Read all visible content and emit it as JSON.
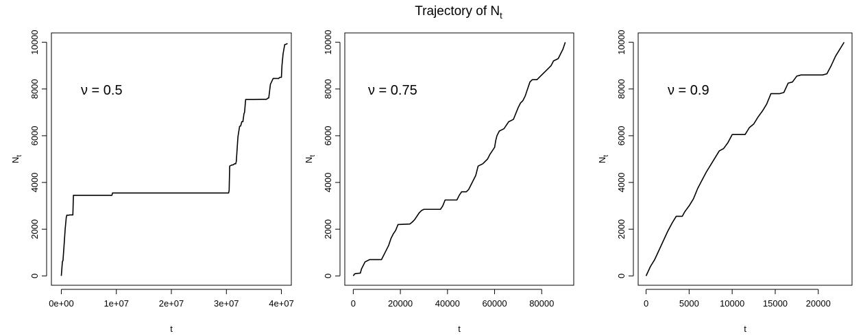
{
  "title": {
    "main": "Trajectory of N",
    "sub": "t"
  },
  "chart_data": [
    {
      "type": "line",
      "title": "",
      "xlabel": "t",
      "ylabel": {
        "main": "N",
        "sub": "t"
      },
      "annotation": "ν = 0.5",
      "xlim": [
        -1800000,
        41800000
      ],
      "ylim": [
        -400,
        10400
      ],
      "xticks": [
        0,
        10000000,
        20000000,
        30000000,
        40000000
      ],
      "xtick_labels": [
        "0e+00",
        "1e+07",
        "2e+07",
        "3e+07",
        "4e+07"
      ],
      "yticks": [
        0,
        2000,
        4000,
        6000,
        8000,
        10000
      ],
      "ytick_labels": [
        "0",
        "2000",
        "4000",
        "6000",
        "8000",
        "10000"
      ],
      "grid": false,
      "series": [
        {
          "x": [
            0,
            200000,
            300000,
            500000,
            700000,
            900000,
            1000000,
            1400000,
            1500000,
            2100000,
            2200000,
            9200000,
            9300000,
            30400000,
            30500000,
            30600000,
            31000000,
            31200000,
            31500000,
            31700000,
            31800000,
            32100000,
            32400000,
            32600000,
            32800000,
            33000000,
            33200000,
            33300000,
            33500000,
            35100000,
            36500000,
            37300000,
            37500000,
            37700000,
            38000000,
            38500000,
            38800000,
            39000000,
            39500000,
            39700000,
            40000000,
            40100000,
            40300000,
            40600000,
            40900000,
            41100000
          ],
          "y": [
            0,
            620,
            650,
            1300,
            2000,
            2500,
            2600,
            2600,
            2610,
            2610,
            3450,
            3450,
            3550,
            3550,
            3650,
            4700,
            4750,
            4750,
            4800,
            4800,
            4900,
            5950,
            6400,
            6420,
            6600,
            6600,
            6950,
            7000,
            7550,
            7550,
            7560,
            7560,
            7600,
            7620,
            8200,
            8450,
            8450,
            8450,
            8450,
            8500,
            8500,
            9000,
            9500,
            9900,
            9920,
            9950
          ]
        }
      ]
    },
    {
      "type": "line",
      "title": "",
      "xlabel": "t",
      "ylabel": {
        "main": "N",
        "sub": "t"
      },
      "annotation": "ν = 0.75",
      "xlim": [
        -3600,
        93600
      ],
      "ylim": [
        -400,
        10400
      ],
      "xticks": [
        0,
        20000,
        40000,
        60000,
        80000
      ],
      "xtick_labels": [
        "0",
        "20000",
        "40000",
        "60000",
        "80000"
      ],
      "yticks": [
        0,
        2000,
        4000,
        6000,
        8000,
        10000
      ],
      "ytick_labels": [
        "0",
        "2000",
        "4000",
        "6000",
        "8000",
        "10000"
      ],
      "grid": false,
      "series": [
        {
          "x": [
            0,
            500,
            1000,
            3000,
            3500,
            5000,
            6000,
            7000,
            12000,
            13000,
            15000,
            16000,
            17000,
            18000,
            19000,
            24000,
            25000,
            26000,
            28000,
            29000,
            30000,
            37000,
            38000,
            39000,
            44000,
            45000,
            46000,
            48000,
            49000,
            50000,
            51000,
            52000,
            53000,
            55000,
            57000,
            57500,
            58000,
            60000,
            60500,
            61000,
            62000,
            63000,
            64000,
            66000,
            67000,
            68000,
            70000,
            71000,
            72000,
            73000,
            74000,
            75000,
            76000,
            77000,
            78000,
            79000,
            81000,
            82000,
            84000,
            85000,
            87000,
            88000,
            89000,
            90000
          ],
          "y": [
            0,
            80,
            100,
            120,
            300,
            600,
            650,
            700,
            700,
            900,
            1300,
            1600,
            1800,
            1950,
            2200,
            2220,
            2300,
            2400,
            2700,
            2800,
            2850,
            2850,
            3000,
            3250,
            3250,
            3450,
            3600,
            3600,
            3700,
            3900,
            4100,
            4300,
            4700,
            4800,
            5000,
            5100,
            5200,
            5500,
            5800,
            6000,
            6200,
            6250,
            6300,
            6600,
            6650,
            6700,
            7200,
            7400,
            7500,
            7700,
            8000,
            8300,
            8400,
            8400,
            8400,
            8500,
            8700,
            8800,
            9000,
            9200,
            9300,
            9500,
            9700,
            10000
          ]
        }
      ]
    },
    {
      "type": "line",
      "title": "",
      "xlabel": "t",
      "ylabel": {
        "main": "N",
        "sub": "t"
      },
      "annotation": "ν = 0.9",
      "xlim": [
        -920,
        23920
      ],
      "ylim": [
        -400,
        10400
      ],
      "xticks": [
        0,
        5000,
        10000,
        15000,
        20000
      ],
      "xtick_labels": [
        "0",
        "5000",
        "10000",
        "15000",
        "20000"
      ],
      "yticks": [
        0,
        2000,
        4000,
        6000,
        8000,
        10000
      ],
      "ytick_labels": [
        "0",
        "2000",
        "4000",
        "6000",
        "8000",
        "10000"
      ],
      "grid": false,
      "series": [
        {
          "x": [
            0,
            500,
            1000,
            1500,
            2000,
            2500,
            3000,
            3500,
            4200,
            4500,
            5000,
            5500,
            6000,
            6500,
            7000,
            7500,
            8000,
            8500,
            9000,
            9500,
            10000,
            10500,
            10600,
            11500,
            12000,
            12500,
            13000,
            13500,
            14000,
            14500,
            15500,
            16000,
            16500,
            17000,
            17500,
            18000,
            18500,
            19000,
            20000,
            20500,
            21000,
            21500,
            22000,
            22500,
            23000
          ],
          "y": [
            0,
            400,
            700,
            1100,
            1500,
            1900,
            2250,
            2550,
            2550,
            2750,
            3000,
            3300,
            3750,
            4100,
            4450,
            4750,
            5050,
            5350,
            5450,
            5700,
            6050,
            6050,
            6050,
            6050,
            6350,
            6500,
            6800,
            7050,
            7350,
            7800,
            7800,
            7850,
            8250,
            8300,
            8550,
            8600,
            8600,
            8600,
            8600,
            8600,
            8650,
            9000,
            9400,
            9700,
            10000
          ]
        }
      ]
    }
  ]
}
